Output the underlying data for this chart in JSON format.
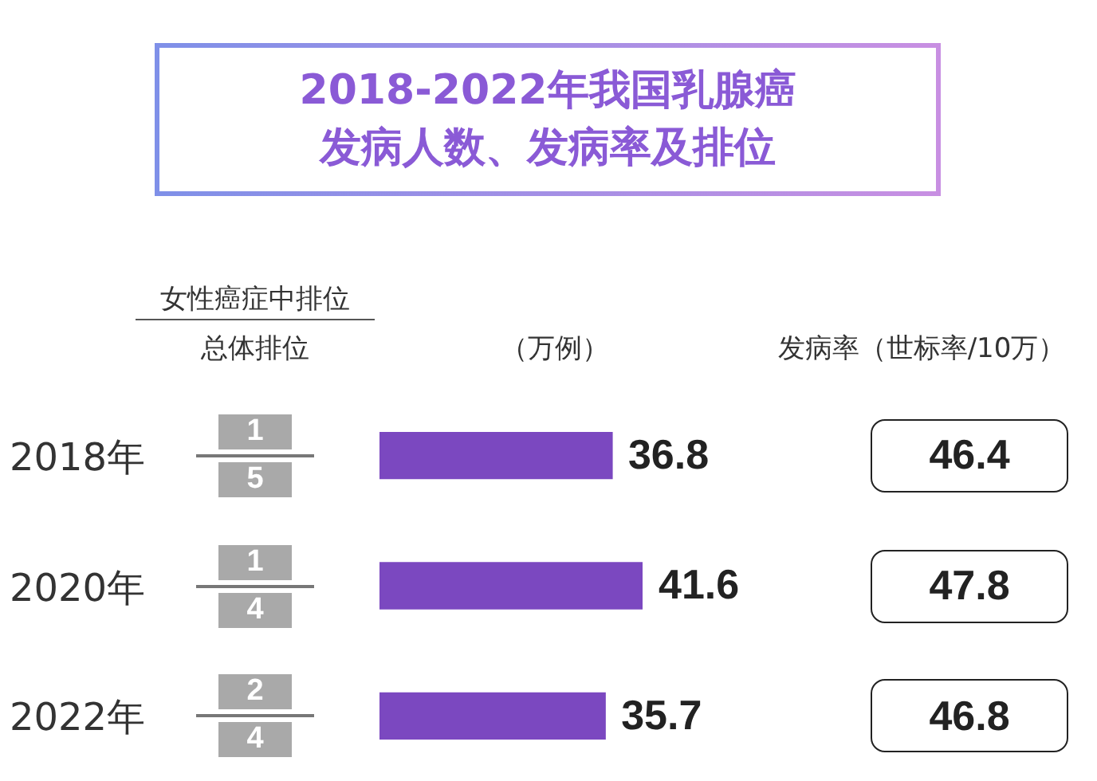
{
  "chart_data": {
    "type": "bar",
    "orientation": "horizontal",
    "title": "2018-2022年我国乳腺癌发病人数、发病率及排位",
    "categories": [
      "2018年",
      "2020年",
      "2022年"
    ],
    "values": [
      36.8,
      41.6,
      35.7
    ],
    "color": "#7b48c0",
    "data_labels": true,
    "legend": false,
    "annotations": [
      "女性癌症中排位",
      "总体排位",
      "（万例）",
      "发病率（世标率/10万）",
      "1",
      "5",
      "46.4",
      "1",
      "4",
      "47.8",
      "2",
      "4",
      "46.8"
    ]
  }
}
